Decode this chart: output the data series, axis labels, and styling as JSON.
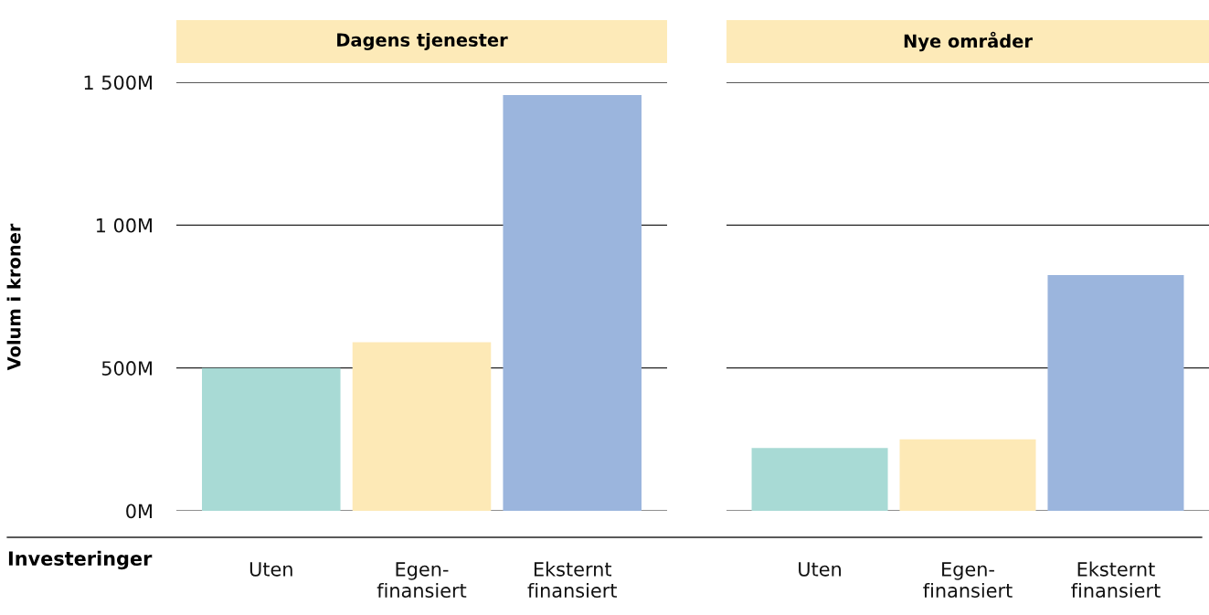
{
  "chart_data": [
    {
      "type": "bar",
      "title": "Dagens tjenester",
      "ylabel": "Volum i kroner",
      "annotations": [
        "Investeringer"
      ],
      "categories": [
        "Uten",
        "Egen-\nfinansiert",
        "Eksternt\nfinansiert"
      ],
      "values": [
        500,
        590,
        1455
      ],
      "colors": [
        "#a8dad5",
        "#fde9b6",
        "#9bb5dd"
      ],
      "ylim": [
        0,
        1500
      ],
      "yticks": [
        {
          "value": 0,
          "label": "0M"
        },
        {
          "value": 500,
          "label": "500M"
        },
        {
          "value": 1000,
          "label": "1 00M"
        },
        {
          "value": 1500,
          "label": "1 500M"
        }
      ],
      "grid": "y"
    },
    {
      "type": "bar",
      "title": "Nye områder",
      "tick_labels": "x",
      "categories": [
        "Uten",
        "Egen-\nfinansiert",
        "Eksternt\nfinansiert"
      ],
      "values": [
        220,
        250,
        825
      ],
      "colors": [
        "#a8dad5",
        "#fde9b6",
        "#9bb5dd"
      ],
      "ylim": [
        0,
        1500
      ],
      "yticks": [
        {
          "value": 0,
          "label": null
        },
        {
          "value": 500,
          "label": null
        },
        {
          "value": 1000,
          "label": null
        },
        {
          "value": 1500,
          "label": null
        }
      ],
      "grid": "y"
    }
  ]
}
